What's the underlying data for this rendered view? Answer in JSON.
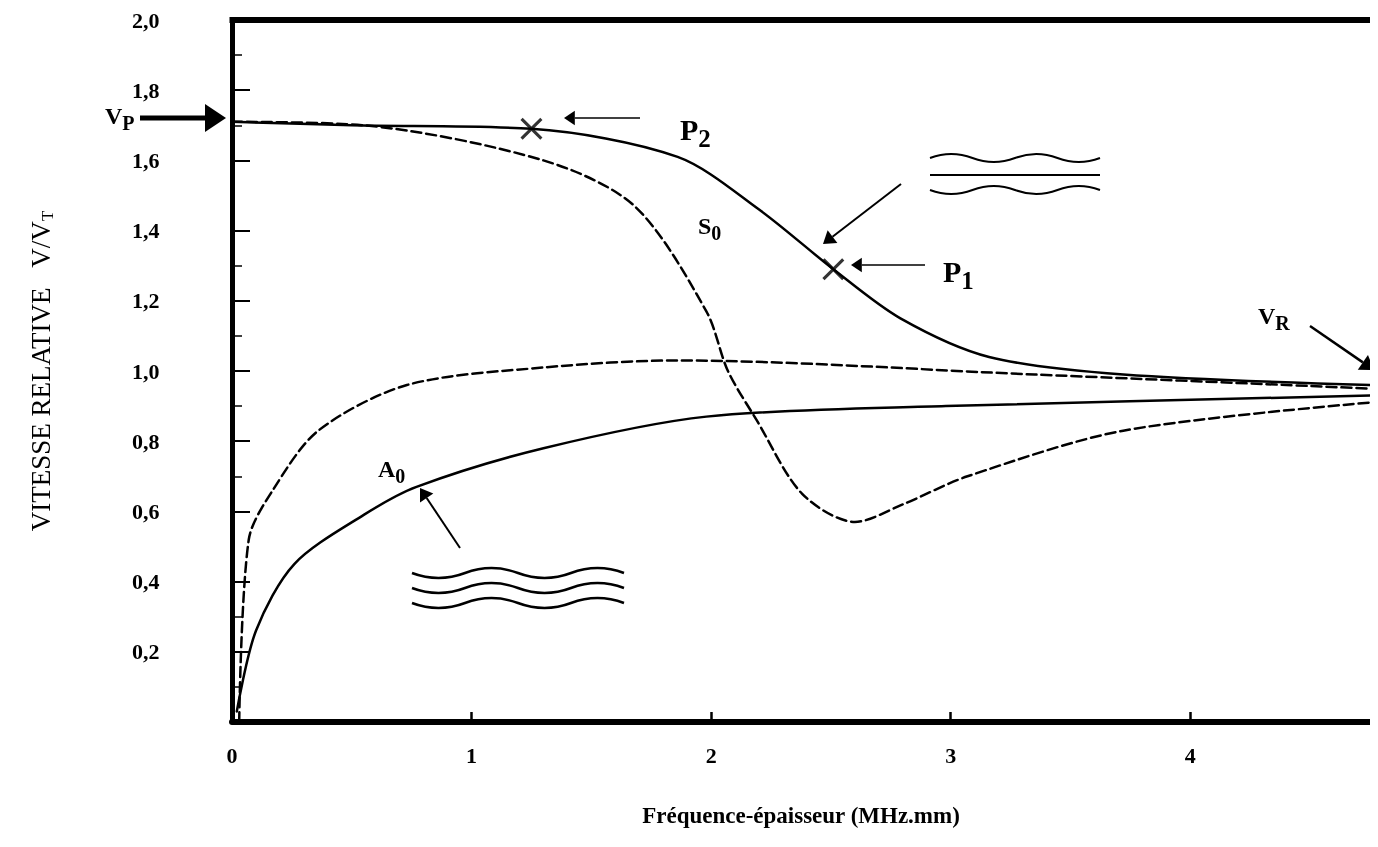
{
  "chart_data": {
    "type": "line",
    "xlabel": "Fréquence-épaisseur (MHz.mm)",
    "ylabel": "VITESSE RELATIVE   V/V$_{T}$",
    "xlim": [
      0,
      4.75
    ],
    "ylim": [
      0,
      2.0
    ],
    "xticks": [
      0,
      1,
      2,
      3,
      4
    ],
    "yticks": [
      {
        "value": 0.2,
        "label": "0,2"
      },
      {
        "value": 0.4,
        "label": "0,4"
      },
      {
        "value": 0.6,
        "label": "0,6"
      },
      {
        "value": 0.8,
        "label": "0,8"
      },
      {
        "value": 1.0,
        "label": "1,0"
      },
      {
        "value": 1.2,
        "label": "1,2"
      },
      {
        "value": 1.4,
        "label": "1,4"
      },
      {
        "value": 1.6,
        "label": "1,6"
      },
      {
        "value": 1.8,
        "label": "1,8"
      },
      {
        "value": 2.0,
        "label": "2,0"
      }
    ],
    "grid": false,
    "marker": "none",
    "series": [
      {
        "color": "#000000",
        "line_style": "solid",
        "x": [
          0,
          0.5,
          1.25,
          1.86,
          2.2,
          2.51,
          2.79,
          3.16,
          3.72,
          4.75
        ],
        "values": [
          1.71,
          1.7,
          1.69,
          1.61,
          1.46,
          1.29,
          1.15,
          1.04,
          0.99,
          0.96
        ]
      },
      {
        "color": "#000000",
        "line_style": "dashed",
        "x": [
          0,
          0.55,
          1.3,
          1.68,
          1.98,
          2.07,
          2.19,
          2.38,
          2.6,
          2.8,
          3.07,
          3.72,
          4.75
        ],
        "values": [
          1.71,
          1.7,
          1.6,
          1.47,
          1.17,
          1.0,
          0.86,
          0.65,
          0.57,
          0.62,
          0.7,
          0.83,
          0.91
        ]
      },
      {
        "color": "#000000",
        "line_style": "dashed",
        "x": [
          0.03,
          0.07,
          0.17,
          0.36,
          0.73,
          1.3,
          1.86,
          3.35,
          4.75
        ],
        "values": [
          0,
          0.52,
          0.66,
          0.83,
          0.96,
          1.01,
          1.03,
          0.99,
          0.95
        ]
      },
      {
        "color": "#000000",
        "line_style": "solid",
        "x": [
          0.02,
          0.1,
          0.26,
          0.55,
          0.77,
          1.3,
          1.98,
          2.98,
          4.75
        ],
        "values": [
          0.03,
          0.26,
          0.45,
          0.59,
          0.67,
          0.78,
          0.87,
          0.9,
          0.93
        ]
      },
      {
        "type": "scatter",
        "marker": "cross",
        "color": "#000000",
        "x": [
          1.25,
          2.51
        ],
        "values": [
          1.69,
          1.29
        ]
      }
    ],
    "annotations": [
      "P$_{2}$",
      "P$_{1}$",
      "S$_{0}$",
      "A$_{0}$",
      "V$_{P}$",
      "V$_{R}$"
    ]
  }
}
